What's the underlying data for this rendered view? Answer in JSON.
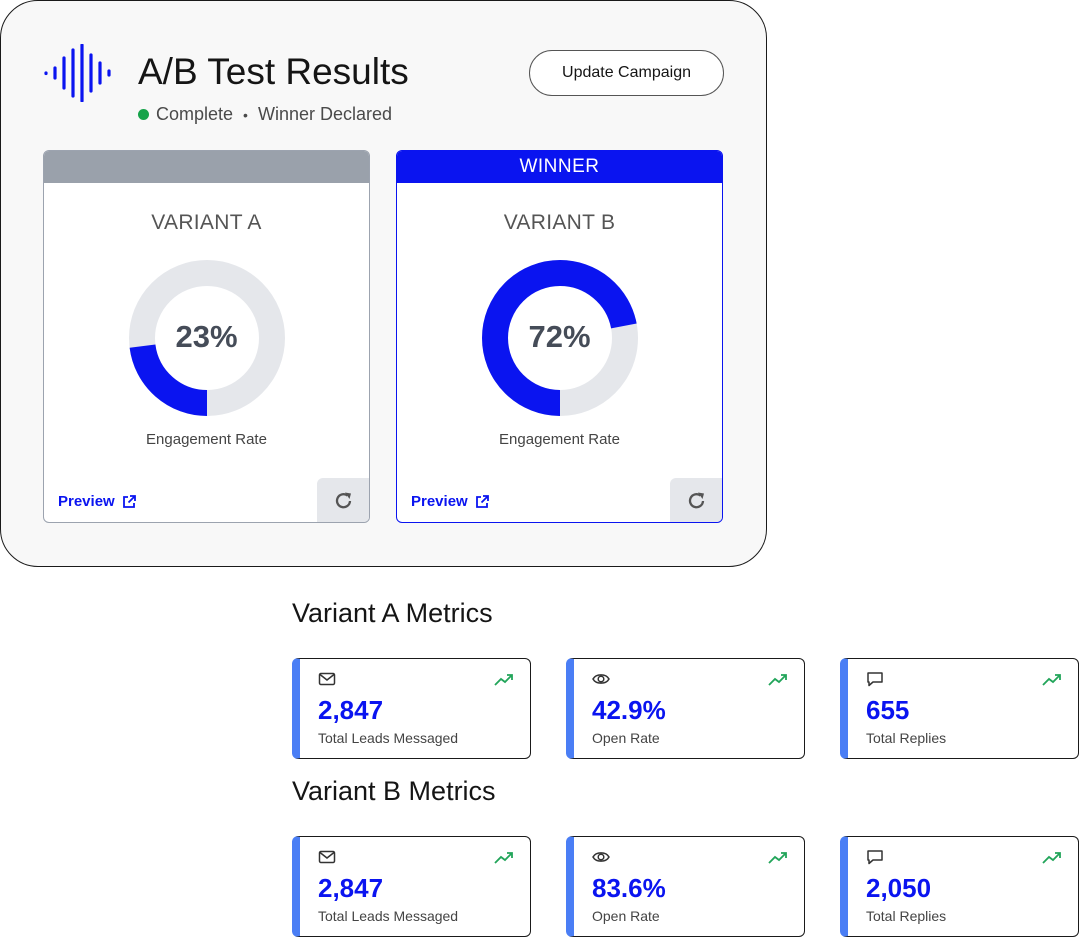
{
  "header": {
    "title": "A/B Test Results",
    "status": "Complete",
    "status_detail": "Winner Declared",
    "update_button": "Update Campaign",
    "status_color": "#16a34a",
    "accent_color": "#0a14f0"
  },
  "variants": [
    {
      "header_label": "",
      "name": "VARIANT A",
      "engagement_rate_text": "23%",
      "engagement_rate_value": 0.23,
      "rate_label": "Engagement Rate",
      "preview_label": "Preview",
      "refresh_icon": "refresh-icon"
    },
    {
      "header_label": "WINNER",
      "name": "VARIANT B",
      "engagement_rate_text": "72%",
      "engagement_rate_value": 0.72,
      "rate_label": "Engagement Rate",
      "preview_label": "Preview",
      "refresh_icon": "refresh-icon"
    }
  ],
  "metrics_a": {
    "title": "Variant A Metrics",
    "cards": [
      {
        "icon": "mail-icon",
        "value": "2,847",
        "label": "Total Leads Messaged"
      },
      {
        "icon": "eye-icon",
        "value": "42.9%",
        "label": "Open Rate"
      },
      {
        "icon": "comment-icon",
        "value": "655",
        "label": "Total Replies"
      }
    ]
  },
  "metrics_b": {
    "title": "Variant B Metrics",
    "cards": [
      {
        "icon": "mail-icon",
        "value": "2,847",
        "label": "Total Leads Messaged"
      },
      {
        "icon": "eye-icon",
        "value": "83.6%",
        "label": "Open Rate"
      },
      {
        "icon": "comment-icon",
        "value": "2,050",
        "label": "Total Replies"
      }
    ]
  }
}
